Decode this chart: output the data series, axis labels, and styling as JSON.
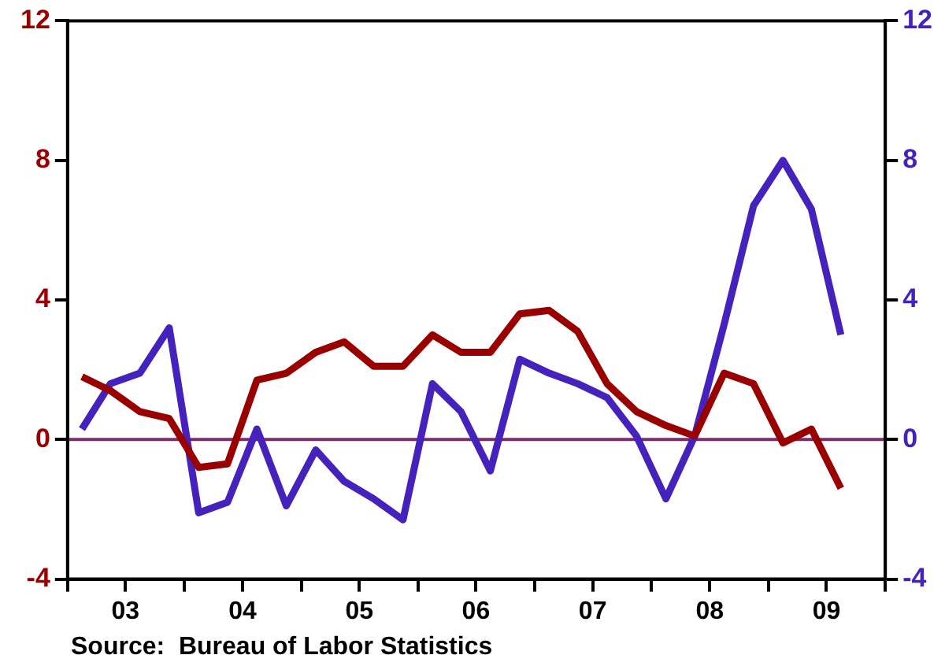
{
  "chart_data": {
    "type": "line",
    "x": [
      "2003-02-15",
      "2003-05-15",
      "2003-08-15",
      "2003-11-15",
      "2004-02-15",
      "2004-05-15",
      "2004-08-15",
      "2004-11-15",
      "2005-02-15",
      "2005-05-15",
      "2005-08-15",
      "2005-11-15",
      "2006-02-15",
      "2006-05-15",
      "2006-08-15",
      "2006-11-15",
      "2007-02-15",
      "2007-05-15",
      "2007-08-15",
      "2007-11-15",
      "2008-02-15",
      "2008-05-15",
      "2008-08-15",
      "2008-11-15",
      "2009-02-15",
      "2009-05-15",
      "2009-08-15"
    ],
    "series": [
      {
        "color": "#990000",
        "values": [
          1.8,
          1.4,
          0.8,
          0.6,
          -0.8,
          -0.7,
          1.7,
          1.9,
          2.5,
          2.8,
          2.1,
          2.1,
          3.0,
          2.5,
          2.5,
          3.6,
          3.7,
          3.1,
          1.6,
          0.8,
          0.4,
          0.1,
          1.9,
          1.6,
          -0.1,
          0.3,
          -1.4
        ]
      },
      {
        "color": "#4422bb",
        "axis": "y2",
        "values": [
          0.3,
          1.6,
          1.9,
          3.2,
          -2.1,
          -1.8,
          0.3,
          -1.9,
          -0.3,
          -1.2,
          -1.7,
          -2.3,
          1.6,
          0.8,
          -0.9,
          2.3,
          1.9,
          1.6,
          1.2,
          0.1,
          -1.7,
          0.1,
          3.3,
          6.7,
          8.0,
          6.6,
          3.0
        ]
      }
    ],
    "xlim": [
      "2003-01-01",
      "2010-01-01"
    ],
    "xticks": [
      {
        "value": "2003-01-01",
        "label": null
      },
      {
        "value": "2003-07-01",
        "label": "03"
      },
      {
        "value": "2004-01-01",
        "label": null
      },
      {
        "value": "2004-07-01",
        "label": "04"
      },
      {
        "value": "2005-01-01",
        "label": null
      },
      {
        "value": "2005-07-01",
        "label": "05"
      },
      {
        "value": "2006-01-01",
        "label": null
      },
      {
        "value": "2006-07-01",
        "label": "06"
      },
      {
        "value": "2007-01-01",
        "label": null
      },
      {
        "value": "2007-07-01",
        "label": "07"
      },
      {
        "value": "2008-01-01",
        "label": null
      },
      {
        "value": "2008-07-01",
        "label": "08"
      },
      {
        "value": "2009-01-01",
        "label": null
      },
      {
        "value": "2009-07-01",
        "label": "09"
      },
      {
        "value": "2010-01-01",
        "label": null
      }
    ],
    "ylim": [
      -4,
      12
    ],
    "yticks": [
      -4,
      0,
      4,
      8,
      12
    ],
    "y2lim": [
      -4,
      12
    ],
    "y2ticks": [
      -4,
      0,
      4,
      8,
      12
    ],
    "ref_lines": [
      {
        "axis": "y",
        "value": 0,
        "color": "#7b2a6b"
      }
    ],
    "grid": false,
    "legend": false,
    "marker": "none",
    "line_style": "solid",
    "annotations": [
      "Source:  Bureau of Labor Statistics"
    ]
  }
}
